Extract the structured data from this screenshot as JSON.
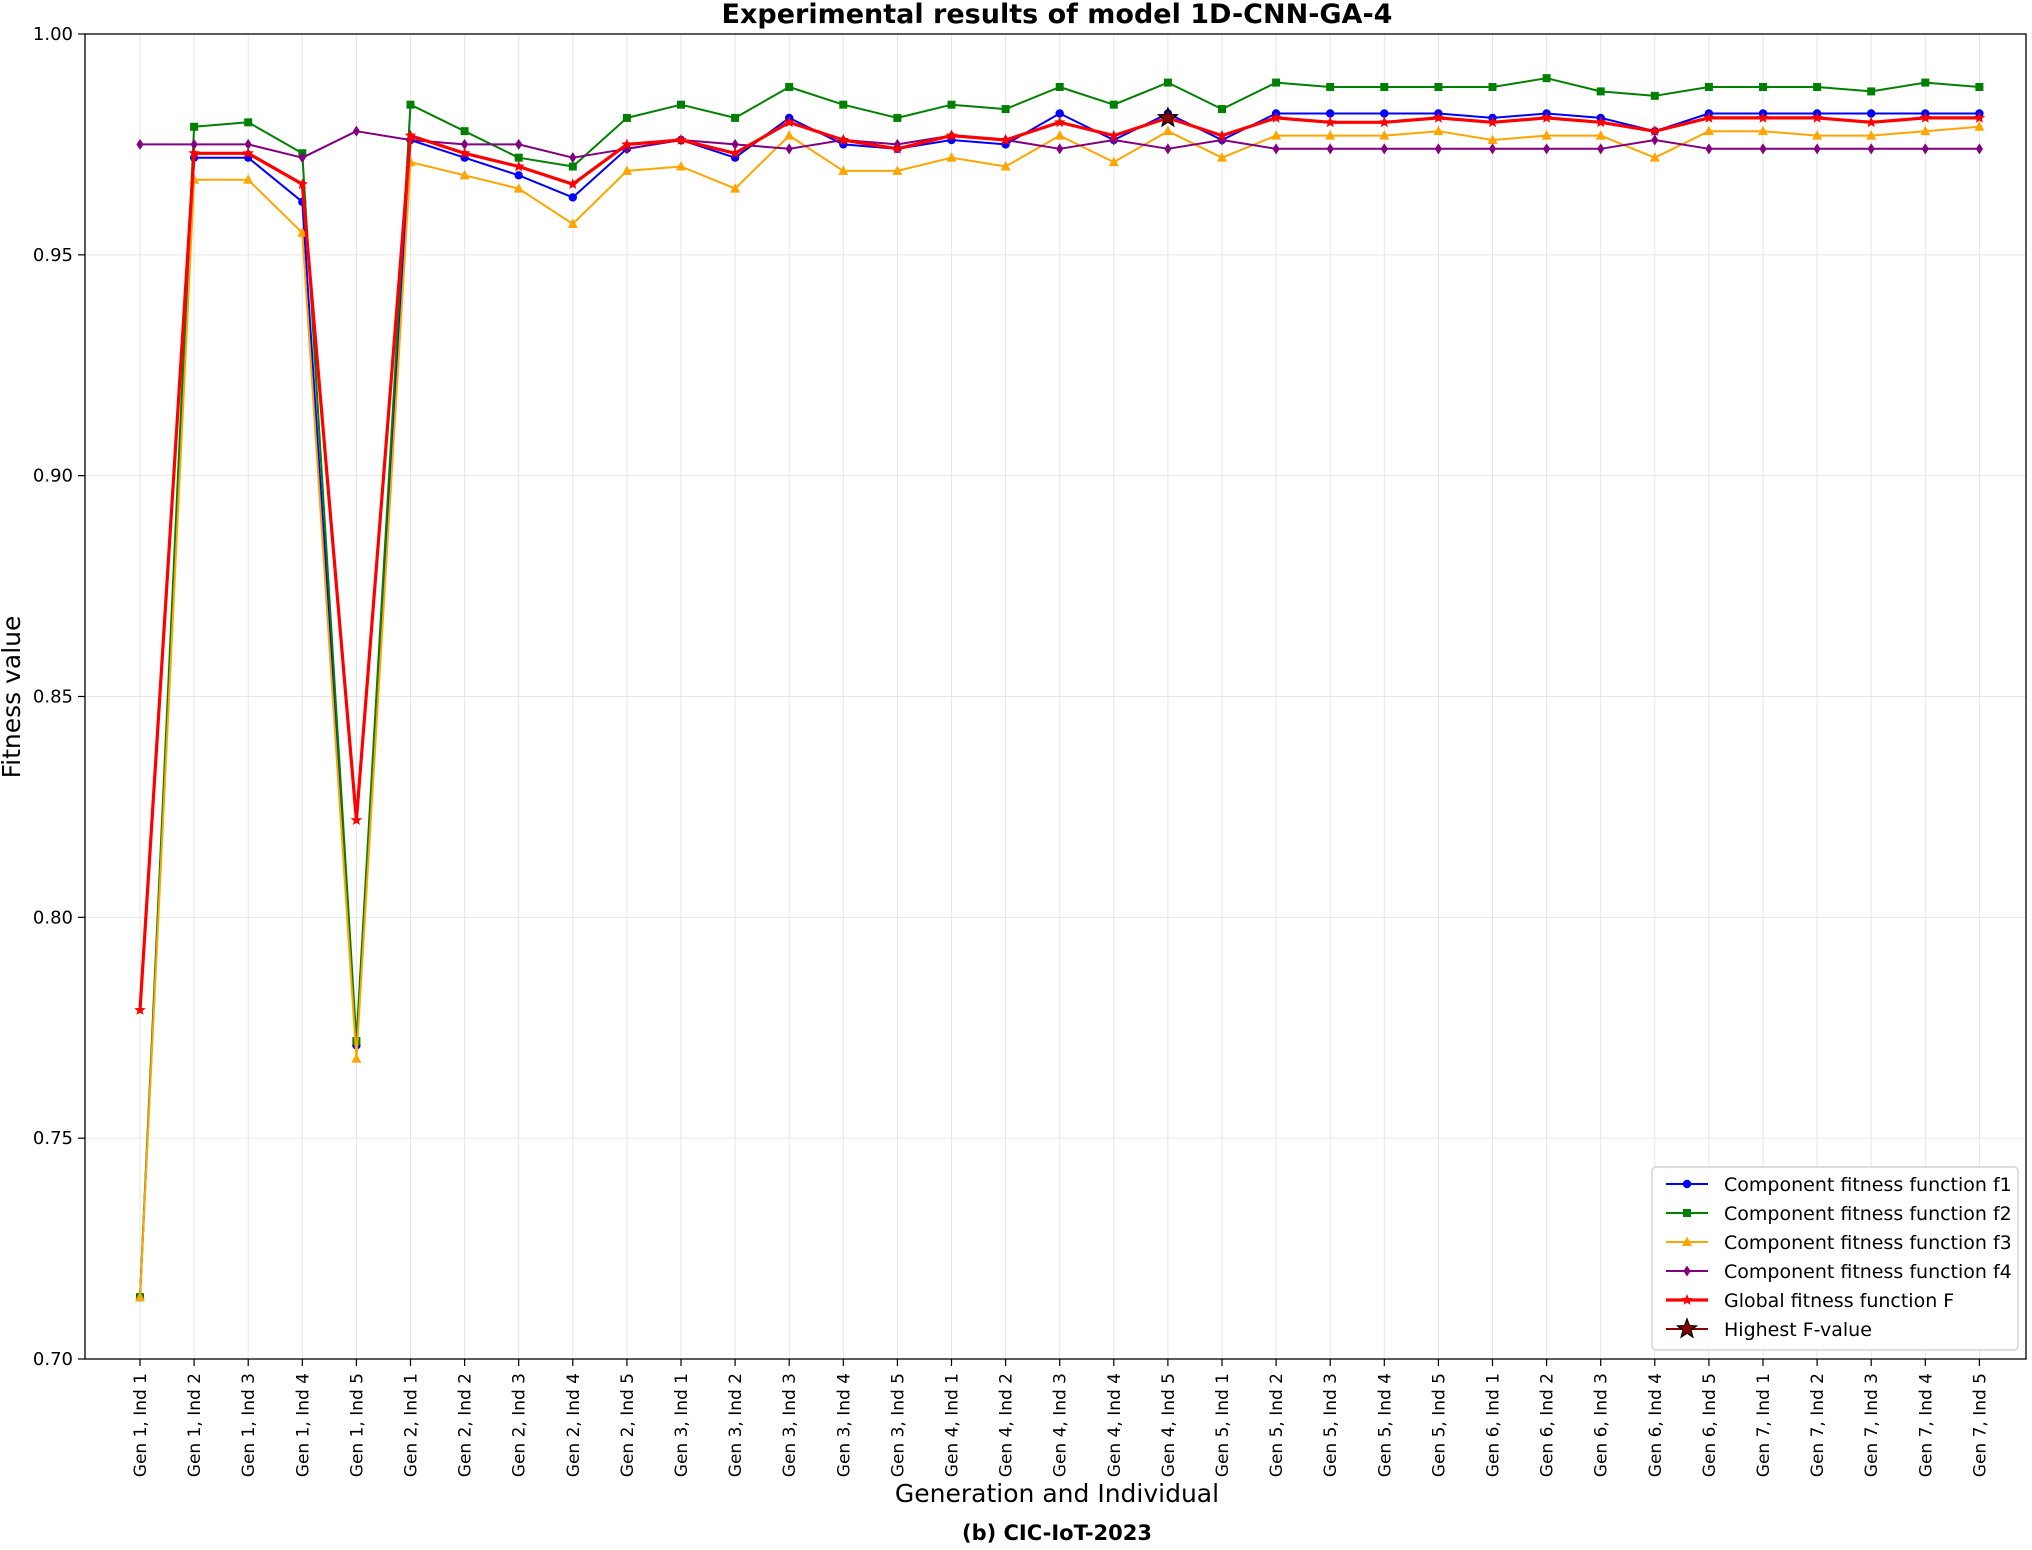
{
  "chart_data": {
    "type": "line",
    "title": "Experimental results of model 1D-CNN-GA-4",
    "caption": "(b) CIC-IoT-2023",
    "xlabel": "Generation and Individual",
    "ylabel": "Fitness value",
    "ylim": [
      0.7,
      1.0
    ],
    "yticks": [
      "0.70",
      "0.75",
      "0.80",
      "0.85",
      "0.90",
      "0.95",
      "1.00"
    ],
    "grid": true,
    "legend_position": "bottom-right",
    "categories": [
      "Gen 1, Ind 1",
      "Gen 1, Ind 2",
      "Gen 1, Ind 3",
      "Gen 1, Ind 4",
      "Gen 1, Ind 5",
      "Gen 2, Ind 1",
      "Gen 2, Ind 2",
      "Gen 2, Ind 3",
      "Gen 2, Ind 4",
      "Gen 2, Ind 5",
      "Gen 3, Ind 1",
      "Gen 3, Ind 2",
      "Gen 3, Ind 3",
      "Gen 3, Ind 4",
      "Gen 3, Ind 5",
      "Gen 4, Ind 1",
      "Gen 4, Ind 2",
      "Gen 4, Ind 3",
      "Gen 4, Ind 4",
      "Gen 4, Ind 5",
      "Gen 5, Ind 1",
      "Gen 5, Ind 2",
      "Gen 5, Ind 3",
      "Gen 5, Ind 4",
      "Gen 5, Ind 5",
      "Gen 6, Ind 1",
      "Gen 6, Ind 2",
      "Gen 6, Ind 3",
      "Gen 6, Ind 4",
      "Gen 6, Ind 5",
      "Gen 7, Ind 1",
      "Gen 7, Ind 2",
      "Gen 7, Ind 3",
      "Gen 7, Ind 4",
      "Gen 7, Ind 5"
    ],
    "series": [
      {
        "name": "Component fitness function f1",
        "color": "#0000ff",
        "marker": "circle",
        "values": [
          0.714,
          0.972,
          0.972,
          0.962,
          0.771,
          0.976,
          0.972,
          0.968,
          0.963,
          0.974,
          0.976,
          0.972,
          0.981,
          0.975,
          0.974,
          0.976,
          0.975,
          0.982,
          0.976,
          0.982,
          0.976,
          0.982,
          0.982,
          0.982,
          0.982,
          0.981,
          0.982,
          0.981,
          0.978,
          0.982,
          0.982,
          0.982,
          0.982,
          0.982,
          0.982
        ]
      },
      {
        "name": "Component fitness function f2",
        "color": "#008000",
        "marker": "square",
        "values": [
          0.714,
          0.979,
          0.98,
          0.973,
          0.772,
          0.984,
          0.978,
          0.972,
          0.97,
          0.981,
          0.984,
          0.981,
          0.988,
          0.984,
          0.981,
          0.984,
          0.983,
          0.988,
          0.984,
          0.989,
          0.983,
          0.989,
          0.988,
          0.988,
          0.988,
          0.988,
          0.99,
          0.987,
          0.986,
          0.988,
          0.988,
          0.988,
          0.987,
          0.989,
          0.988
        ]
      },
      {
        "name": "Component fitness function f3",
        "color": "#ffa500",
        "marker": "triangle",
        "values": [
          0.714,
          0.967,
          0.967,
          0.955,
          0.768,
          0.971,
          0.968,
          0.965,
          0.957,
          0.969,
          0.97,
          0.965,
          0.977,
          0.969,
          0.969,
          0.972,
          0.97,
          0.977,
          0.971,
          0.978,
          0.972,
          0.977,
          0.977,
          0.977,
          0.978,
          0.976,
          0.977,
          0.977,
          0.972,
          0.978,
          0.978,
          0.977,
          0.977,
          0.978,
          0.979
        ]
      },
      {
        "name": "Component fitness function f4",
        "color": "#800080",
        "marker": "diamond",
        "values": [
          0.975,
          0.975,
          0.975,
          0.972,
          0.978,
          0.976,
          0.975,
          0.975,
          0.972,
          0.974,
          0.976,
          0.975,
          0.974,
          0.976,
          0.975,
          0.977,
          0.976,
          0.974,
          0.976,
          0.974,
          0.976,
          0.974,
          0.974,
          0.974,
          0.974,
          0.974,
          0.974,
          0.974,
          0.976,
          0.974,
          0.974,
          0.974,
          0.974,
          0.974,
          0.974
        ]
      },
      {
        "name": "Global fitness function F",
        "color": "#ff0000",
        "marker": "star",
        "values": [
          0.779,
          0.973,
          0.973,
          0.966,
          0.822,
          0.977,
          0.973,
          0.97,
          0.966,
          0.975,
          0.976,
          0.973,
          0.98,
          0.976,
          0.974,
          0.977,
          0.976,
          0.98,
          0.977,
          0.981,
          0.977,
          0.981,
          0.98,
          0.98,
          0.981,
          0.98,
          0.981,
          0.98,
          0.978,
          0.981,
          0.981,
          0.981,
          0.98,
          0.981,
          0.981
        ]
      }
    ],
    "highlight": {
      "name": "Highest F-value",
      "category": "Gen 4, Ind 5",
      "value": 0.981,
      "color": "#8b0000",
      "marker": "star"
    }
  }
}
